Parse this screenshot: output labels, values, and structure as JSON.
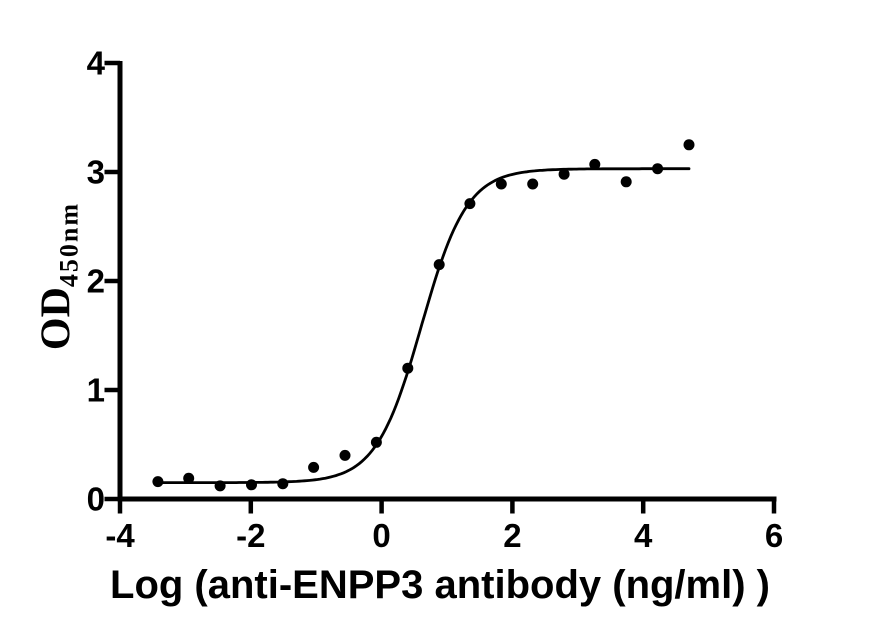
{
  "chart_data": {
    "type": "scatter",
    "title": "",
    "xlabel": "Log (anti-ENPP3 antibody (ng/ml) )",
    "ylabel_base": "OD",
    "ylabel_sub": "450nm",
    "xlim": [
      -4,
      6
    ],
    "ylim": [
      0,
      4
    ],
    "x_ticks": [
      -4,
      -2,
      0,
      2,
      4,
      6
    ],
    "x_tick_labels": [
      "-4",
      "-2",
      "0",
      "2",
      "4",
      "6"
    ],
    "y_ticks": [
      0,
      1,
      2,
      3,
      4
    ],
    "y_tick_labels": [
      "0",
      "1",
      "2",
      "3",
      "4"
    ],
    "grid": false,
    "legend": false,
    "series": [
      {
        "marker": "filled-circle",
        "color": "#000000",
        "x": [
          -3.42,
          -2.95,
          -2.47,
          -1.99,
          -1.51,
          -1.04,
          -0.56,
          -0.08,
          0.4,
          0.88,
          1.35,
          1.83,
          2.31,
          2.79,
          3.26,
          3.74,
          4.22,
          4.7
        ],
        "y": [
          0.16,
          0.19,
          0.12,
          0.13,
          0.14,
          0.29,
          0.4,
          0.52,
          1.2,
          2.15,
          2.71,
          2.89,
          2.89,
          2.98,
          3.07,
          2.91,
          3.03,
          3.25
        ]
      }
    ],
    "fit_curve": {
      "model": "4PL-sigmoid",
      "bottom": 0.15,
      "top": 3.03,
      "log_ec50": 0.61,
      "hill_slope": 1.25,
      "x_start": -3.42,
      "x_end": 4.7,
      "color": "#000000"
    },
    "colors": {
      "background": "#ffffff",
      "axis": "#000000",
      "text": "#000000"
    }
  }
}
